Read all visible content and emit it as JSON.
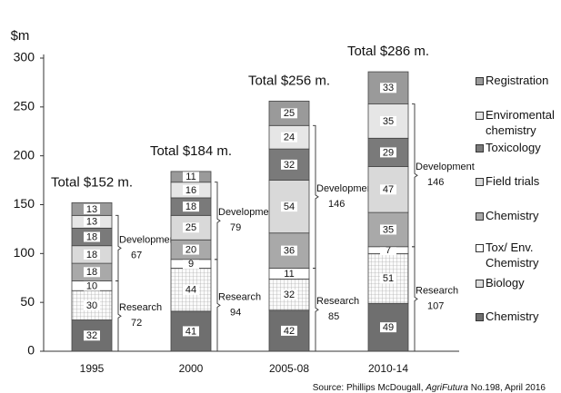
{
  "chart_data": {
    "type": "stacked_bar",
    "ylabel": "$m",
    "categories": [
      "1995",
      "2000",
      "2005-08",
      "2010-14"
    ],
    "series": [
      {
        "name": "Chemistry",
        "color": "#6f6f6f",
        "values": [
          32,
          41,
          42,
          49
        ]
      },
      {
        "name": "Biology",
        "color": "#f2f2f2",
        "pattern": "grid",
        "values": [
          30,
          44,
          32,
          51
        ]
      },
      {
        "name": "Tox/ Env. Chemistry",
        "color": "#ffffff",
        "values": [
          10,
          9,
          11,
          7
        ]
      },
      {
        "name": " Chemistry",
        "color": "#a9a9a9",
        "values": [
          18,
          20,
          36,
          35
        ]
      },
      {
        "name": "Field trials",
        "color": "#d9d9d9",
        "values": [
          18,
          25,
          54,
          47
        ]
      },
      {
        "name": "Toxicology",
        "color": "#7a7a7a",
        "values": [
          18,
          18,
          32,
          29
        ]
      },
      {
        "name": "Enviromental chemistry",
        "color": "#e6e6e6",
        "values": [
          13,
          16,
          24,
          35
        ]
      },
      {
        "name": "Registration",
        "color": "#9a9a9a",
        "values": [
          13,
          11,
          25,
          33
        ]
      }
    ],
    "totals": [
      "Total $152 m.",
      "Total $184 m.",
      "Total $256 m.",
      "Total $286 m."
    ],
    "brackets": [
      {
        "label": "Research",
        "values": [
          72,
          94,
          85,
          107
        ]
      },
      {
        "label": "Development",
        "values": [
          67,
          79,
          146,
          146
        ]
      }
    ],
    "ylim": [
      0,
      300
    ],
    "yticks": [
      0,
      50,
      100,
      150,
      200,
      250,
      300
    ],
    "grid": false,
    "source_parts": [
      "Source: Phillips McDougall, ",
      "AgriFutura",
      " No.198, April 2016"
    ]
  }
}
